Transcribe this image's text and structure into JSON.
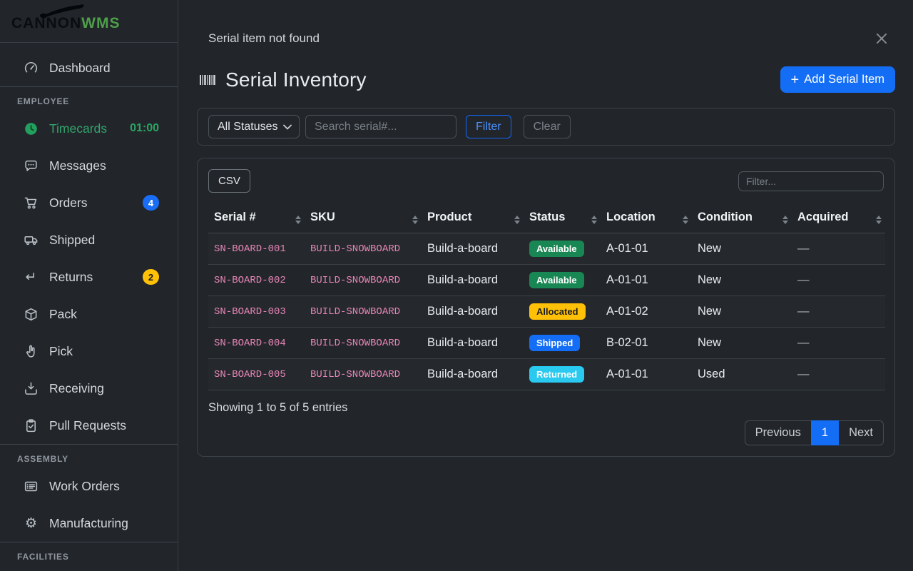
{
  "brand": {
    "text_dark": "CANNON",
    "text_green": "WMS"
  },
  "sidebar": {
    "sections": [
      {
        "header": null,
        "items": [
          {
            "label": "Dashboard",
            "icon": "speedometer-icon"
          }
        ]
      },
      {
        "header": "EMPLOYEE",
        "items": [
          {
            "label": "Timecards",
            "icon": "clock-icon",
            "active": true,
            "badge": "01:00",
            "badge_type": "timer"
          },
          {
            "label": "Messages",
            "icon": "chat-icon"
          },
          {
            "label": "Orders",
            "icon": "cart-icon",
            "badge": "4",
            "badge_type": "primary"
          },
          {
            "label": "Shipped",
            "icon": "truck-icon"
          },
          {
            "label": "Returns",
            "icon": "return-icon",
            "badge": "2",
            "badge_type": "warning"
          },
          {
            "label": "Pack",
            "icon": "box-icon"
          },
          {
            "label": "Pick",
            "icon": "hand-icon"
          },
          {
            "label": "Receiving",
            "icon": "receive-icon"
          },
          {
            "label": "Pull Requests",
            "icon": "clipboard-icon"
          }
        ]
      },
      {
        "header": "ASSEMBLY",
        "items": [
          {
            "label": "Work Orders",
            "icon": "card-list-icon"
          },
          {
            "label": "Manufacturing",
            "icon": "gear-icon"
          }
        ]
      },
      {
        "header": "FACILITIES",
        "items": []
      }
    ]
  },
  "alert": {
    "message": "Serial item not found"
  },
  "header": {
    "title": "Serial Inventory",
    "add_button": "Add Serial Item"
  },
  "filters": {
    "status_select": "All Statuses",
    "search_placeholder": "Search serial#...",
    "filter_button": "Filter",
    "clear_button": "Clear"
  },
  "table_card": {
    "csv_button": "CSV",
    "filter_placeholder": "Filter...",
    "columns": [
      "Serial #",
      "SKU",
      "Product",
      "Status",
      "Location",
      "Condition",
      "Acquired"
    ],
    "rows": [
      {
        "serial": "SN-BOARD-001",
        "sku": "BUILD-SNOWBOARD",
        "product": "Build-a-board",
        "status": "Available",
        "location": "A-01-01",
        "condition": "New",
        "acquired": "—"
      },
      {
        "serial": "SN-BOARD-002",
        "sku": "BUILD-SNOWBOARD",
        "product": "Build-a-board",
        "status": "Available",
        "location": "A-01-01",
        "condition": "New",
        "acquired": "—"
      },
      {
        "serial": "SN-BOARD-003",
        "sku": "BUILD-SNOWBOARD",
        "product": "Build-a-board",
        "status": "Allocated",
        "location": "A-01-02",
        "condition": "New",
        "acquired": "—"
      },
      {
        "serial": "SN-BOARD-004",
        "sku": "BUILD-SNOWBOARD",
        "product": "Build-a-board",
        "status": "Shipped",
        "location": "B-02-01",
        "condition": "New",
        "acquired": "—"
      },
      {
        "serial": "SN-BOARD-005",
        "sku": "BUILD-SNOWBOARD",
        "product": "Build-a-board",
        "status": "Returned",
        "location": "A-01-01",
        "condition": "Used",
        "acquired": "—"
      }
    ],
    "badge_colors": {
      "Available": {
        "bg": "#198754",
        "text": "#ffffff"
      },
      "Allocated": {
        "bg": "#ffc107",
        "text": "#1a1d20"
      },
      "Shipped": {
        "bg": "#146ef5",
        "text": "#ffffff"
      },
      "Returned": {
        "bg": "#29c9f0",
        "text": "#ffffff"
      }
    },
    "summary": "Showing 1 to 5 of 5 entries",
    "pagination": {
      "previous": "Previous",
      "page": "1",
      "next": "Next"
    }
  },
  "colors": {
    "primary": "#146ef5",
    "success": "#198754",
    "warning": "#ffc107",
    "info": "#29c9f0",
    "code_pink": "#e685b5",
    "brand_green": "#4f9e4a"
  }
}
